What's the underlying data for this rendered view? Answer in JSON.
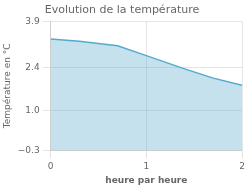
{
  "chart_data": {
    "type": "area",
    "title": "Evolution de la température",
    "xlabel": "heure par heure",
    "ylabel": "Température en °C",
    "x": [
      0,
      0.3,
      0.7,
      1.0,
      1.4,
      1.7,
      2.0
    ],
    "values": [
      3.32,
      3.25,
      3.1,
      2.78,
      2.35,
      2.05,
      1.82
    ],
    "color": "#55aacc",
    "xlim": [
      0,
      2
    ],
    "xticks": [
      0,
      1,
      2
    ],
    "ylim": [
      -0.3,
      3.9
    ],
    "yticks": [
      {
        "value": -0.3,
        "label": "−0.3"
      },
      {
        "value": 1.0,
        "label": "1.0"
      },
      2.4,
      3.9
    ],
    "grid": true
  }
}
